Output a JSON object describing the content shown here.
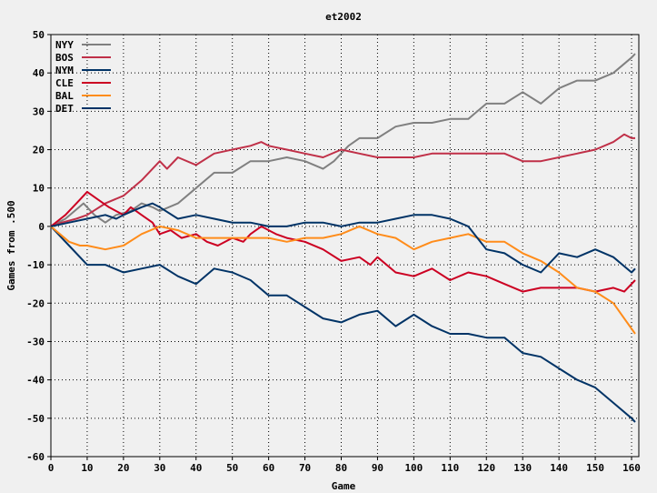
{
  "chart_data": {
    "type": "line",
    "title": "et2002",
    "xlabel": "Game",
    "ylabel": "Games from .500",
    "xlim": [
      0,
      162
    ],
    "ylim": [
      -60,
      50
    ],
    "xticks": [
      0,
      10,
      20,
      30,
      40,
      50,
      60,
      70,
      80,
      90,
      100,
      110,
      120,
      130,
      140,
      150,
      160
    ],
    "yticks": [
      -60,
      -50,
      -40,
      -30,
      -20,
      -10,
      0,
      10,
      20,
      30,
      40,
      50
    ],
    "grid": true,
    "legend_position": "top-left",
    "series": [
      {
        "name": "NYY",
        "color": "#808080",
        "x": [
          0,
          4,
          9,
          12,
          15,
          18,
          22,
          25,
          28,
          30,
          35,
          40,
          45,
          50,
          55,
          60,
          65,
          70,
          75,
          78,
          82,
          85,
          90,
          95,
          100,
          105,
          110,
          115,
          120,
          125,
          130,
          135,
          140,
          145,
          150,
          155,
          160,
          161
        ],
        "y": [
          0,
          2,
          6,
          3,
          1,
          3,
          4,
          6,
          5,
          4,
          6,
          10,
          14,
          14,
          17,
          17,
          18,
          17,
          15,
          17,
          21,
          23,
          23,
          26,
          27,
          27,
          28,
          28,
          32,
          32,
          35,
          32,
          36,
          38,
          38,
          40,
          44,
          45
        ]
      },
      {
        "name": "BOS",
        "color": "#c03048",
        "x": [
          0,
          3,
          7,
          10,
          15,
          20,
          25,
          30,
          32,
          35,
          40,
          45,
          50,
          55,
          58,
          60,
          65,
          70,
          75,
          80,
          85,
          90,
          95,
          100,
          105,
          110,
          115,
          120,
          125,
          130,
          135,
          140,
          145,
          150,
          155,
          158,
          160,
          161
        ],
        "y": [
          0,
          1,
          2,
          3,
          6,
          8,
          12,
          17,
          15,
          18,
          16,
          19,
          20,
          21,
          22,
          21,
          20,
          19,
          18,
          20,
          19,
          18,
          18,
          18,
          19,
          19,
          19,
          19,
          19,
          17,
          17,
          18,
          19,
          20,
          22,
          24,
          23,
          23
        ]
      },
      {
        "name": "NYM",
        "color": "#003366",
        "x": [
          0,
          5,
          10,
          15,
          20,
          25,
          30,
          35,
          40,
          45,
          50,
          55,
          60,
          65,
          70,
          75,
          80,
          85,
          90,
          95,
          100,
          105,
          110,
          115,
          120,
          125,
          130,
          135,
          140,
          145,
          150,
          155,
          160,
          161
        ],
        "y": [
          0,
          -5,
          -10,
          -10,
          -12,
          -11,
          -10,
          -13,
          -15,
          -11,
          -12,
          -14,
          -18,
          -18,
          -21,
          -24,
          -25,
          -23,
          -22,
          -26,
          -23,
          -26,
          -28,
          -28,
          -29,
          -29,
          -33,
          -34,
          -37,
          -40,
          -42,
          -46,
          -50,
          -51
        ]
      },
      {
        "name": "CLE",
        "color": "#cc0022",
        "x": [
          0,
          4,
          8,
          10,
          13,
          16,
          20,
          22,
          25,
          28,
          30,
          33,
          36,
          40,
          43,
          46,
          50,
          53,
          55,
          58,
          60,
          62,
          65,
          70,
          75,
          80,
          85,
          88,
          90,
          95,
          100,
          105,
          110,
          115,
          120,
          125,
          130,
          135,
          140,
          145,
          150,
          155,
          158,
          161
        ],
        "y": [
          0,
          3,
          7,
          9,
          7,
          5,
          3,
          5,
          3,
          1,
          -2,
          -1,
          -3,
          -2,
          -4,
          -5,
          -3,
          -4,
          -2,
          0,
          -1,
          -2,
          -3,
          -4,
          -6,
          -9,
          -8,
          -10,
          -8,
          -12,
          -13,
          -11,
          -14,
          -12,
          -13,
          -15,
          -17,
          -16,
          -16,
          -16,
          -17,
          -16,
          -17,
          -14
        ]
      },
      {
        "name": "BAL",
        "color": "#ff8c1a",
        "x": [
          0,
          5,
          8,
          10,
          15,
          20,
          25,
          30,
          35,
          40,
          45,
          50,
          55,
          60,
          65,
          70,
          75,
          80,
          85,
          90,
          95,
          100,
          105,
          110,
          115,
          120,
          125,
          130,
          135,
          140,
          145,
          150,
          155,
          161
        ],
        "y": [
          0,
          -4,
          -5,
          -5,
          -6,
          -5,
          -2,
          0,
          -1,
          -3,
          -3,
          -3,
          -3,
          -3,
          -4,
          -3,
          -3,
          -2,
          0,
          -2,
          -3,
          -6,
          -4,
          -3,
          -2,
          -4,
          -4,
          -7,
          -9,
          -12,
          -16,
          -17,
          -20,
          -28
        ]
      },
      {
        "name": "DET",
        "color": "#003366",
        "x": [
          0,
          5,
          10,
          15,
          18,
          20,
          25,
          28,
          30,
          35,
          40,
          45,
          50,
          55,
          60,
          65,
          70,
          75,
          80,
          85,
          90,
          95,
          100,
          105,
          110,
          115,
          120,
          125,
          130,
          135,
          140,
          145,
          150,
          155,
          160,
          161
        ],
        "y": [
          0,
          1,
          2,
          3,
          2,
          3,
          5,
          6,
          5,
          2,
          3,
          2,
          1,
          1,
          0,
          0,
          1,
          1,
          0,
          1,
          1,
          2,
          3,
          3,
          2,
          0,
          -6,
          -7,
          -10,
          -12,
          -7,
          -8,
          -6,
          -8,
          -12,
          -11
        ]
      }
    ]
  }
}
